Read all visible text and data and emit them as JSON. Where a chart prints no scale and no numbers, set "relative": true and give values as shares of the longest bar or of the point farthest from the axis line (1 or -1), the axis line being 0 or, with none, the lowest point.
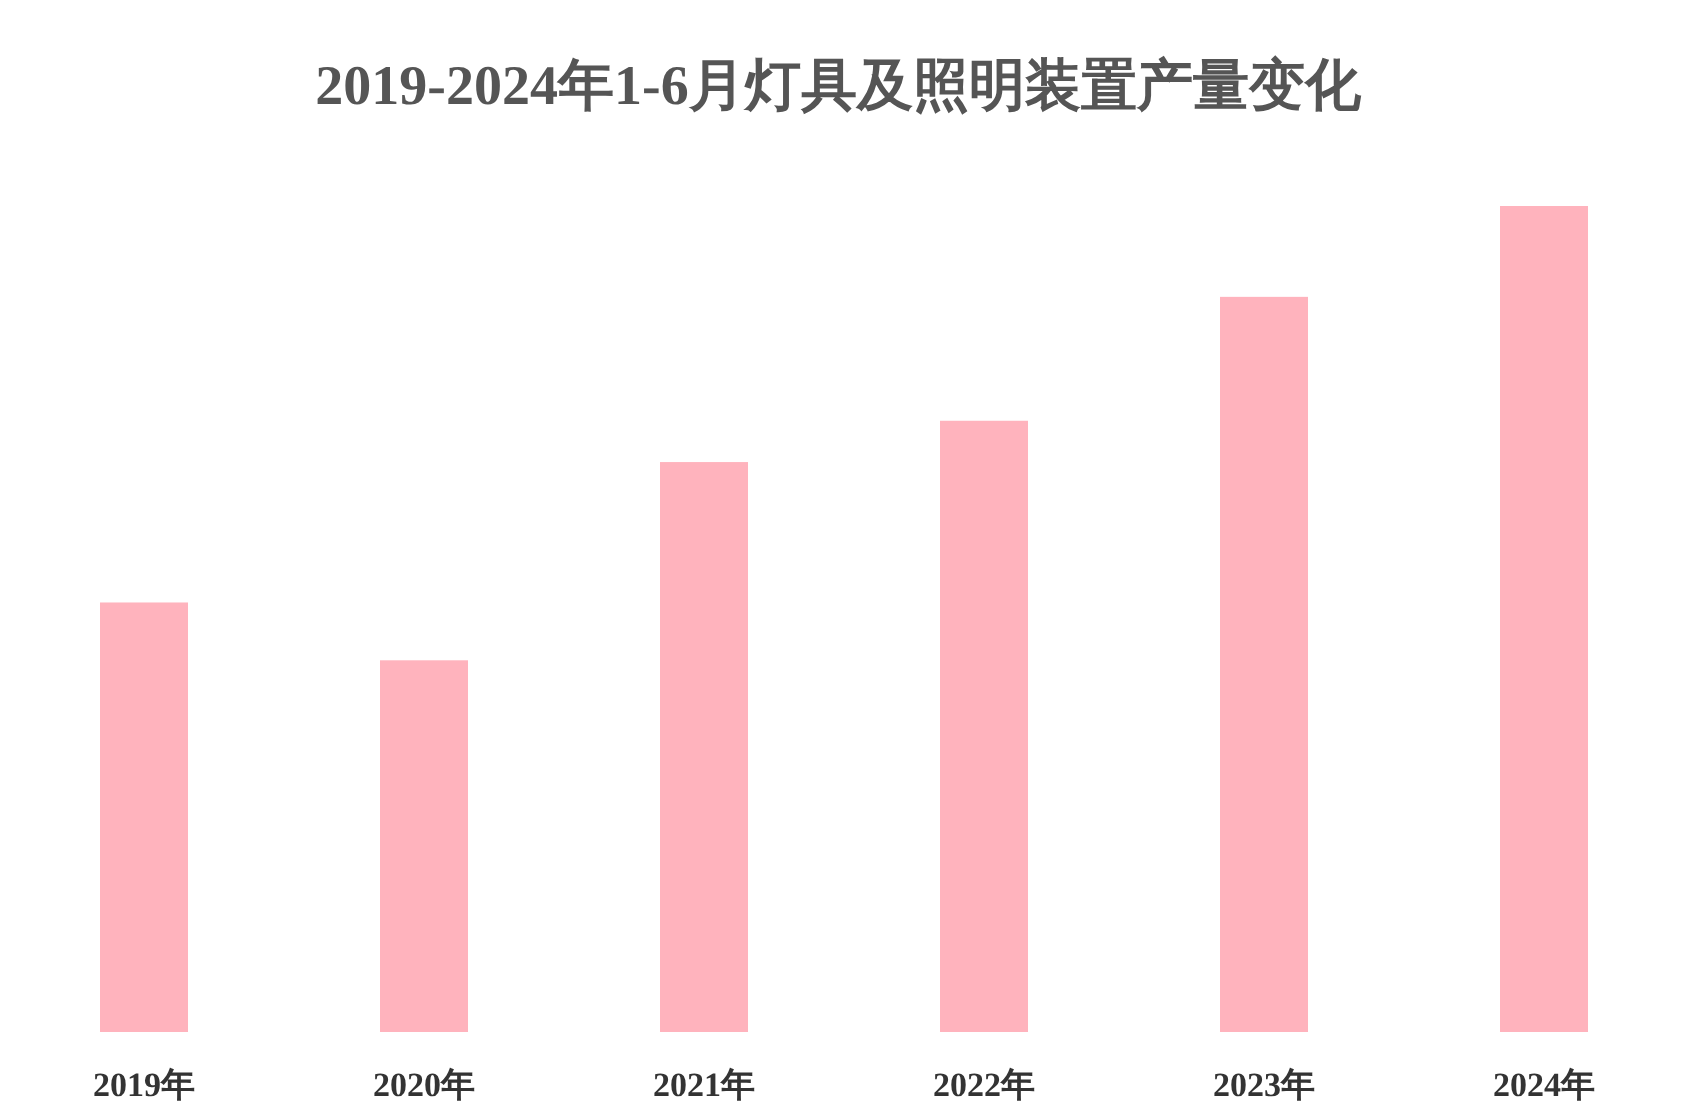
{
  "chart_data": {
    "type": "bar",
    "title": "2019-2024年1-6月灯具及照明装置产量变化",
    "categories": [
      "2019年",
      "2020年",
      "2021年",
      "2022年",
      "2023年",
      "2024年"
    ],
    "values": [
      0.52,
      0.45,
      0.69,
      0.74,
      0.89,
      1
    ],
    "color": "#ffb3bd",
    "relative": true
  }
}
